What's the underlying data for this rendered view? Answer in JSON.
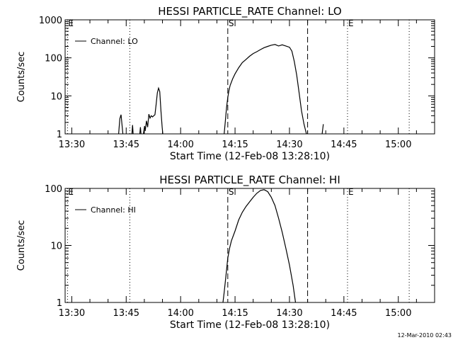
{
  "chart_data": [
    {
      "type": "line",
      "title": "HESSI PARTICLE_RATE Channel: LO",
      "xlabel": "Start Time (12-Feb-08 13:28:10)",
      "ylabel": "Counts/sec",
      "yscale": "log",
      "ylim": [
        1,
        1000
      ],
      "xlim": [
        "13:28:10",
        "15:10"
      ],
      "xticks": [
        "13:30",
        "13:45",
        "14:00",
        "14:15",
        "14:30",
        "14:45",
        "15:00"
      ],
      "yticks": [
        "1",
        "10",
        "100",
        "1000"
      ],
      "legend": {
        "position": "top-left",
        "entries": [
          "Channel: LO"
        ]
      },
      "markers": [
        {
          "label": "E",
          "time": "13:28:50",
          "style": "dotted"
        },
        {
          "label": "",
          "time": "13:46",
          "style": "dotted"
        },
        {
          "label": "S",
          "time": "14:13",
          "style": "dashed"
        },
        {
          "label": "",
          "time": "14:35",
          "style": "dashed"
        },
        {
          "label": "E",
          "time": "14:46",
          "style": "dotted"
        },
        {
          "label": "",
          "time": "15:03",
          "style": "dotted"
        }
      ],
      "series": [
        {
          "name": "Channel: LO",
          "segments": [
            [
              [
                "13:42:55",
                1
              ],
              [
                "13:43:15",
                2.5
              ],
              [
                "13:43:35",
                3.2
              ],
              [
                "13:43:55",
                1.5
              ],
              [
                "13:44:05",
                1
              ]
            ],
            [
              [
                "13:46:35",
                1
              ],
              [
                "13:46:45",
                1.7
              ],
              [
                "13:46:55",
                1
              ]
            ],
            [
              [
                "13:48:45",
                1
              ],
              [
                "13:48:55",
                1.5
              ],
              [
                "13:49:05",
                1
              ]
            ],
            [
              [
                "13:49:45",
                1
              ],
              [
                "13:50:05",
                1.6
              ],
              [
                "13:50:15",
                1.2
              ],
              [
                "13:50:35",
                2.2
              ],
              [
                "13:50:55",
                1.5
              ],
              [
                "13:51:15",
                3.3
              ],
              [
                "13:51:35",
                2.6
              ],
              [
                "13:51:55",
                3
              ],
              [
                "13:52:15",
                2.8
              ],
              [
                "13:52:35",
                3
              ],
              [
                "13:52:55",
                3.2
              ],
              [
                "13:53:15",
                6
              ],
              [
                "13:53:35",
                12
              ],
              [
                "13:53:55",
                16
              ],
              [
                "13:54:15",
                13
              ],
              [
                "13:54:35",
                4
              ],
              [
                "13:54:55",
                1.5
              ],
              [
                "13:55:05",
                1
              ]
            ],
            [
              [
                "14:12:00",
                1
              ],
              [
                "14:12:20",
                2.2
              ],
              [
                "14:12:40",
                5
              ],
              [
                "14:13:00",
                9
              ],
              [
                "14:13:20",
                14
              ],
              [
                "14:13:40",
                19
              ],
              [
                "14:14:20",
                28
              ],
              [
                "14:15:00",
                38
              ],
              [
                "14:16:00",
                55
              ],
              [
                "14:17:00",
                75
              ],
              [
                "14:18:00",
                90
              ],
              [
                "14:19:00",
                110
              ],
              [
                "14:20:00",
                130
              ],
              [
                "14:21:00",
                145
              ],
              [
                "14:22:00",
                165
              ],
              [
                "14:23:00",
                185
              ],
              [
                "14:24:00",
                200
              ],
              [
                "14:25:00",
                215
              ],
              [
                "14:26:00",
                225
              ],
              [
                "14:27:00",
                205
              ],
              [
                "14:28:00",
                220
              ],
              [
                "14:29:00",
                205
              ],
              [
                "14:30:00",
                190
              ],
              [
                "14:30:40",
                150
              ],
              [
                "14:31:20",
                80
              ],
              [
                "14:32:00",
                35
              ],
              [
                "14:32:40",
                12
              ],
              [
                "14:33:20",
                4
              ],
              [
                "14:34:00",
                1.8
              ],
              [
                "14:34:40",
                1
              ]
            ],
            [
              [
                "14:39:00",
                1
              ],
              [
                "14:39:20",
                1.8
              ]
            ]
          ]
        }
      ]
    },
    {
      "type": "line",
      "title": "HESSI PARTICLE_RATE Channel: HI",
      "xlabel": "Start Time (12-Feb-08 13:28:10)",
      "ylabel": "Counts/sec",
      "yscale": "log",
      "ylim": [
        1,
        100
      ],
      "xlim": [
        "13:28:10",
        "15:10"
      ],
      "xticks": [
        "13:30",
        "13:45",
        "14:00",
        "14:15",
        "14:30",
        "14:45",
        "15:00"
      ],
      "yticks": [
        "1",
        "10",
        "100"
      ],
      "legend": {
        "position": "top-left",
        "entries": [
          "Channel: HI"
        ]
      },
      "markers": [
        {
          "label": "E",
          "time": "13:28:50",
          "style": "dotted"
        },
        {
          "label": "",
          "time": "13:46",
          "style": "dotted"
        },
        {
          "label": "S",
          "time": "14:13",
          "style": "dashed"
        },
        {
          "label": "",
          "time": "14:35",
          "style": "dashed"
        },
        {
          "label": "E",
          "time": "14:46",
          "style": "dotted"
        },
        {
          "label": "",
          "time": "15:03",
          "style": "dotted"
        }
      ],
      "series": [
        {
          "name": "Channel: HI",
          "segments": [
            [
              [
                "14:11:40",
                1
              ],
              [
                "14:12:00",
                1.5
              ],
              [
                "14:12:30",
                3
              ],
              [
                "14:13:00",
                6
              ],
              [
                "14:13:30",
                9
              ],
              [
                "14:14:00",
                12
              ],
              [
                "14:15:00",
                18
              ],
              [
                "14:16:00",
                28
              ],
              [
                "14:17:00",
                38
              ],
              [
                "14:18:00",
                48
              ],
              [
                "14:19:00",
                58
              ],
              [
                "14:20:00",
                70
              ],
              [
                "14:21:00",
                82
              ],
              [
                "14:22:00",
                92
              ],
              [
                "14:23:00",
                95
              ],
              [
                "14:24:00",
                88
              ],
              [
                "14:25:00",
                70
              ],
              [
                "14:26:00",
                50
              ],
              [
                "14:27:00",
                30
              ],
              [
                "14:28:00",
                17
              ],
              [
                "14:29:00",
                9
              ],
              [
                "14:30:00",
                4.5
              ],
              [
                "14:31:00",
                2
              ],
              [
                "14:31:40",
                1
              ]
            ]
          ]
        }
      ]
    }
  ],
  "footer": {
    "timestamp": "12-Mar-2010 02:43"
  }
}
